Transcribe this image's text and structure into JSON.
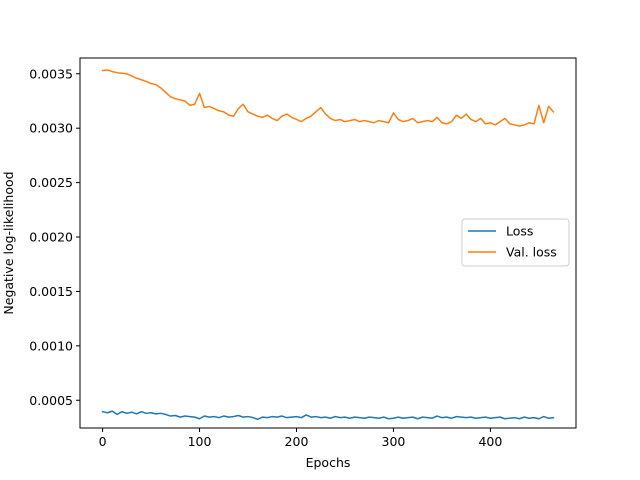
{
  "chart_data": {
    "type": "line",
    "title": "",
    "xlabel": "Epochs",
    "ylabel": "Negative log-likelihood",
    "xlim": [
      -23.3,
      488.3
    ],
    "ylim": [
      0.000245,
      0.003645
    ],
    "xticks": [
      0,
      100,
      200,
      300,
      400
    ],
    "xtick_labels": [
      "0",
      "100",
      "200",
      "300",
      "400"
    ],
    "yticks": [
      0.0005,
      0.001,
      0.0015,
      0.002,
      0.0025,
      0.003,
      0.0035
    ],
    "ytick_labels": [
      "0.0005",
      "0.0010",
      "0.0015",
      "0.0020",
      "0.0025",
      "0.0030",
      "0.0035"
    ],
    "grid": false,
    "legend_position": "center-right",
    "series": [
      {
        "name": "Loss",
        "color": "#1f77b4",
        "x": [
          0,
          5,
          10,
          15,
          20,
          25,
          30,
          35,
          40,
          45,
          50,
          55,
          60,
          65,
          70,
          75,
          80,
          85,
          90,
          95,
          100,
          105,
          110,
          115,
          120,
          125,
          130,
          135,
          140,
          145,
          150,
          155,
          160,
          165,
          170,
          175,
          180,
          185,
          190,
          195,
          200,
          205,
          210,
          215,
          220,
          225,
          230,
          235,
          240,
          245,
          250,
          255,
          260,
          265,
          270,
          275,
          280,
          285,
          290,
          295,
          300,
          305,
          310,
          315,
          320,
          325,
          330,
          335,
          340,
          345,
          350,
          355,
          360,
          365,
          370,
          375,
          380,
          385,
          390,
          395,
          400,
          405,
          410,
          415,
          420,
          425,
          430,
          435,
          440,
          445,
          450,
          455,
          460,
          465
        ],
        "values": [
          0.000395,
          0.000385,
          0.0004,
          0.00037,
          0.000395,
          0.00038,
          0.00039,
          0.000375,
          0.000395,
          0.00038,
          0.000385,
          0.000375,
          0.00038,
          0.00037,
          0.000355,
          0.00036,
          0.000345,
          0.000355,
          0.00035,
          0.000345,
          0.00033,
          0.000355,
          0.000345,
          0.00035,
          0.00034,
          0.000355,
          0.000345,
          0.00035,
          0.00036,
          0.000345,
          0.00035,
          0.00034,
          0.000325,
          0.000345,
          0.00034,
          0.00035,
          0.000345,
          0.000355,
          0.00034,
          0.000345,
          0.00035,
          0.00034,
          0.000365,
          0.000345,
          0.00035,
          0.00034,
          0.000345,
          0.000335,
          0.00035,
          0.00034,
          0.000345,
          0.000335,
          0.000345,
          0.00034,
          0.000335,
          0.000345,
          0.00034,
          0.000335,
          0.000345,
          0.00033,
          0.000335,
          0.000345,
          0.000335,
          0.00034,
          0.000345,
          0.00033,
          0.000345,
          0.00034,
          0.000335,
          0.000355,
          0.00034,
          0.000345,
          0.000335,
          0.00035,
          0.000345,
          0.00034,
          0.000345,
          0.000335,
          0.00034,
          0.000345,
          0.000335,
          0.00034,
          0.000345,
          0.00033,
          0.000335,
          0.00034,
          0.00033,
          0.000345,
          0.000335,
          0.00034,
          0.00033,
          0.00035,
          0.000335,
          0.00034
        ]
      },
      {
        "name": "Val. loss",
        "color": "#ff7f0e",
        "x": [
          0,
          5,
          10,
          15,
          20,
          25,
          30,
          35,
          40,
          45,
          50,
          55,
          60,
          65,
          70,
          75,
          80,
          85,
          90,
          95,
          100,
          105,
          110,
          115,
          120,
          125,
          130,
          135,
          140,
          145,
          150,
          155,
          160,
          165,
          170,
          175,
          180,
          185,
          190,
          195,
          200,
          205,
          210,
          215,
          220,
          225,
          230,
          235,
          240,
          245,
          250,
          255,
          260,
          265,
          270,
          275,
          280,
          285,
          290,
          295,
          300,
          305,
          310,
          315,
          320,
          325,
          330,
          335,
          340,
          345,
          350,
          355,
          360,
          365,
          370,
          375,
          380,
          385,
          390,
          395,
          400,
          405,
          410,
          415,
          420,
          425,
          430,
          435,
          440,
          445,
          450,
          455,
          460,
          465
        ],
        "values": [
          0.00353,
          0.003535,
          0.00352,
          0.00351,
          0.003505,
          0.0035,
          0.00348,
          0.00346,
          0.003445,
          0.00343,
          0.00341,
          0.0034,
          0.00337,
          0.00333,
          0.00329,
          0.00327,
          0.00326,
          0.00325,
          0.00321,
          0.00322,
          0.00332,
          0.00319,
          0.0032,
          0.00318,
          0.00316,
          0.00315,
          0.00312,
          0.00311,
          0.00318,
          0.00322,
          0.00315,
          0.00313,
          0.00311,
          0.0031,
          0.00312,
          0.00309,
          0.00307,
          0.00311,
          0.00313,
          0.0031,
          0.00308,
          0.00306,
          0.00309,
          0.00311,
          0.00315,
          0.00319,
          0.00313,
          0.00309,
          0.00307,
          0.00308,
          0.00306,
          0.00307,
          0.00308,
          0.00306,
          0.00307,
          0.00306,
          0.00305,
          0.00307,
          0.00306,
          0.00305,
          0.00314,
          0.00308,
          0.00306,
          0.00307,
          0.00309,
          0.00305,
          0.00306,
          0.00307,
          0.00306,
          0.0031,
          0.00305,
          0.00304,
          0.00306,
          0.00312,
          0.00309,
          0.00313,
          0.00308,
          0.00306,
          0.00309,
          0.00304,
          0.00305,
          0.00303,
          0.00306,
          0.00309,
          0.00304,
          0.00303,
          0.00302,
          0.00303,
          0.00305,
          0.00304,
          0.00321,
          0.00305,
          0.0032,
          0.00315
        ]
      }
    ]
  }
}
